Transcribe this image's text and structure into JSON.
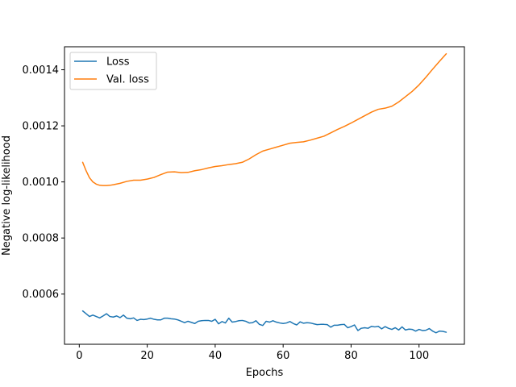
{
  "chart_data": {
    "type": "line",
    "title": "",
    "xlabel": "Epochs",
    "ylabel": "Negative log-likelihood",
    "xlim": [
      -4.35,
      113.35
    ],
    "ylim": [
      0.000421,
      0.001482
    ],
    "xticks": [
      0,
      20,
      40,
      60,
      80,
      100
    ],
    "xtick_labels": [
      "0",
      "20",
      "40",
      "60",
      "80",
      "100"
    ],
    "yticks": [
      0.0006,
      0.0008,
      0.001,
      0.0012,
      0.0014
    ],
    "ytick_labels": [
      "0.0006",
      "0.0008",
      "0.0010",
      "0.0012",
      "0.0014"
    ],
    "grid": false,
    "legend_position": "upper-left",
    "series": [
      {
        "name": "Loss",
        "color": "#1f77b4",
        "points": [
          [
            1,
            0.00054
          ],
          [
            2,
            0.00053
          ],
          [
            3,
            0.00052
          ],
          [
            4,
            0.000525
          ],
          [
            5,
            0.00052
          ],
          [
            6,
            0.000515
          ],
          [
            7,
            0.000522
          ],
          [
            8,
            0.00053
          ],
          [
            9,
            0.00052
          ],
          [
            10,
            0.000518
          ],
          [
            11,
            0.000522
          ],
          [
            12,
            0.000516
          ],
          [
            13,
            0.000525
          ],
          [
            14,
            0.000514
          ],
          [
            15,
            0.000512
          ],
          [
            16,
            0.000515
          ],
          [
            17,
            0.000506
          ],
          [
            18,
            0.00051
          ],
          [
            19,
            0.000509
          ],
          [
            20,
            0.000511
          ],
          [
            21,
            0.000514
          ],
          [
            22,
            0.00051
          ],
          [
            23,
            0.000508
          ],
          [
            24,
            0.000508
          ],
          [
            25,
            0.000514
          ],
          [
            26,
            0.000514
          ],
          [
            27,
            0.000512
          ],
          [
            28,
            0.000511
          ],
          [
            29,
            0.000508
          ],
          [
            30,
            0.000503
          ],
          [
            31,
            0.000498
          ],
          [
            32,
            0.000503
          ],
          [
            33,
            0.000499
          ],
          [
            34,
            0.000495
          ],
          [
            35,
            0.000503
          ],
          [
            36,
            0.000505
          ],
          [
            37,
            0.000506
          ],
          [
            38,
            0.000506
          ],
          [
            39,
            0.000503
          ],
          [
            40,
            0.00051
          ],
          [
            41,
            0.000494
          ],
          [
            42,
            0.000502
          ],
          [
            43,
            0.000497
          ],
          [
            44,
            0.000514
          ],
          [
            45,
            0.0005
          ],
          [
            46,
            0.000502
          ],
          [
            47,
            0.000505
          ],
          [
            48,
            0.000506
          ],
          [
            49,
            0.000503
          ],
          [
            50,
            0.000497
          ],
          [
            51,
            0.000498
          ],
          [
            52,
            0.000505
          ],
          [
            53,
            0.000492
          ],
          [
            54,
            0.000488
          ],
          [
            55,
            0.000503
          ],
          [
            56,
            0.0005
          ],
          [
            57,
            0.000505
          ],
          [
            58,
            0.0005
          ],
          [
            59,
            0.000497
          ],
          [
            60,
            0.000495
          ],
          [
            61,
            0.000497
          ],
          [
            62,
            0.000502
          ],
          [
            63,
            0.000495
          ],
          [
            64,
            0.00049
          ],
          [
            65,
            0.000501
          ],
          [
            66,
            0.000496
          ],
          [
            67,
            0.000498
          ],
          [
            68,
            0.000497
          ],
          [
            69,
            0.000494
          ],
          [
            70,
            0.000491
          ],
          [
            71,
            0.000492
          ],
          [
            72,
            0.000492
          ],
          [
            73,
            0.000491
          ],
          [
            74,
            0.000482
          ],
          [
            75,
            0.000489
          ],
          [
            76,
            0.000489
          ],
          [
            77,
            0.000491
          ],
          [
            78,
            0.000492
          ],
          [
            79,
            0.00048
          ],
          [
            80,
            0.000484
          ],
          [
            81,
            0.00049
          ],
          [
            82,
            0.00047
          ],
          [
            83,
            0.000478
          ],
          [
            84,
            0.00048
          ],
          [
            85,
            0.000478
          ],
          [
            86,
            0.000485
          ],
          [
            87,
            0.000483
          ],
          [
            88,
            0.000485
          ],
          [
            89,
            0.000476
          ],
          [
            90,
            0.000484
          ],
          [
            91,
            0.000478
          ],
          [
            92,
            0.000474
          ],
          [
            93,
            0.00048
          ],
          [
            94,
            0.000472
          ],
          [
            95,
            0.000483
          ],
          [
            96,
            0.000472
          ],
          [
            97,
            0.000475
          ],
          [
            98,
            0.000474
          ],
          [
            99,
            0.000468
          ],
          [
            100,
            0.000474
          ],
          [
            101,
            0.00047
          ],
          [
            102,
            0.000471
          ],
          [
            103,
            0.000477
          ],
          [
            104,
            0.000468
          ],
          [
            105,
            0.000462
          ],
          [
            106,
            0.000468
          ],
          [
            107,
            0.000467
          ],
          [
            108,
            0.000464
          ]
        ]
      },
      {
        "name": "Val. loss",
        "color": "#ff7f0e",
        "points": [
          [
            1,
            0.00107
          ],
          [
            2,
            0.00104
          ],
          [
            3,
            0.001015
          ],
          [
            4,
            0.001
          ],
          [
            5,
            0.000992
          ],
          [
            6,
            0.000988
          ],
          [
            7,
            0.000987
          ],
          [
            8,
            0.000987
          ],
          [
            9,
            0.000988
          ],
          [
            10,
            0.00099
          ],
          [
            12,
            0.000995
          ],
          [
            14,
            0.001002
          ],
          [
            16,
            0.001006
          ],
          [
            18,
            0.001006
          ],
          [
            20,
            0.00101
          ],
          [
            22,
            0.001016
          ],
          [
            24,
            0.001026
          ],
          [
            26,
            0.001035
          ],
          [
            28,
            0.001036
          ],
          [
            30,
            0.001033
          ],
          [
            32,
            0.001034
          ],
          [
            34,
            0.00104
          ],
          [
            36,
            0.001044
          ],
          [
            38,
            0.00105
          ],
          [
            40,
            0.001055
          ],
          [
            42,
            0.001058
          ],
          [
            44,
            0.001062
          ],
          [
            46,
            0.001065
          ],
          [
            48,
            0.00107
          ],
          [
            50,
            0.001082
          ],
          [
            52,
            0.001097
          ],
          [
            54,
            0.00111
          ],
          [
            56,
            0.001117
          ],
          [
            58,
            0.001124
          ],
          [
            60,
            0.001131
          ],
          [
            62,
            0.001138
          ],
          [
            64,
            0.001141
          ],
          [
            66,
            0.001143
          ],
          [
            68,
            0.001149
          ],
          [
            70,
            0.001156
          ],
          [
            72,
            0.001163
          ],
          [
            74,
            0.001175
          ],
          [
            76,
            0.001187
          ],
          [
            78,
            0.001198
          ],
          [
            80,
            0.00121
          ],
          [
            82,
            0.001223
          ],
          [
            84,
            0.001236
          ],
          [
            86,
            0.001249
          ],
          [
            88,
            0.001259
          ],
          [
            90,
            0.001263
          ],
          [
            92,
            0.00127
          ],
          [
            94,
            0.001285
          ],
          [
            96,
            0.001304
          ],
          [
            98,
            0.001323
          ],
          [
            100,
            0.001346
          ],
          [
            102,
            0.001373
          ],
          [
            104,
            0.001402
          ],
          [
            106,
            0.00143
          ],
          [
            108,
            0.001457
          ]
        ]
      }
    ]
  }
}
